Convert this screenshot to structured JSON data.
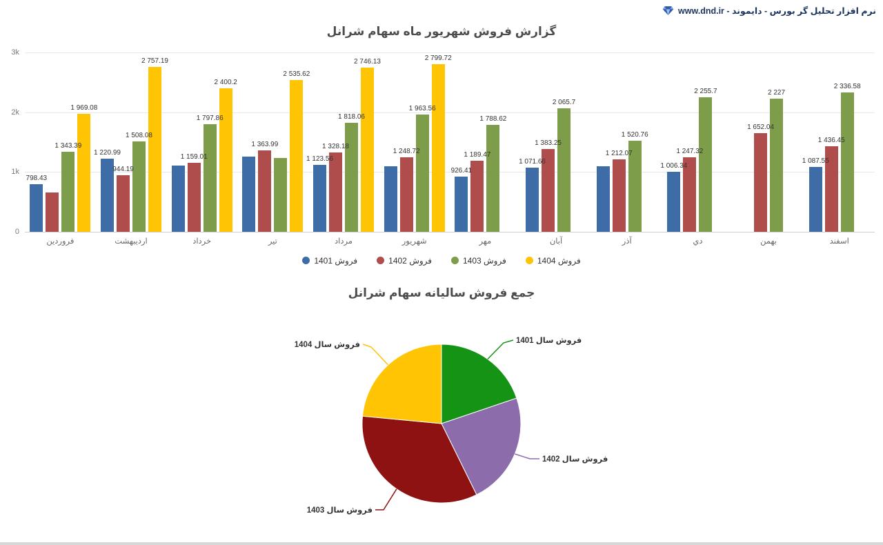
{
  "header": {
    "title": "نرم افزار تحلیل گر بورس - دایموند - www.dnd.ir"
  },
  "chart_data": [
    {
      "type": "bar",
      "title": "گزارش فروش شهریور ماه سهام شرانل",
      "categories": [
        "فروردین",
        "اردیبهشت",
        "خرداد",
        "تیر",
        "مرداد",
        "شهریور",
        "مهر",
        "آبان",
        "آذر",
        "دي",
        "بهمن",
        "اسفند"
      ],
      "ylim": [
        0,
        3000
      ],
      "yticks": [
        "0",
        "1k",
        "2k",
        "3k"
      ],
      "grid": true,
      "legend_position": "bottom",
      "series": [
        {
          "name": "فروش 1401",
          "color": "#3e6ca6",
          "values": [
            798.43,
            1220.99,
            1105,
            1260,
            1123.56,
            1095,
            926.41,
            1071.66,
            1095,
            1006.34,
            null,
            1087.55
          ],
          "labels": [
            "798.43",
            "1 220.99",
            null,
            null,
            "1 123.56",
            null,
            "926.41",
            "1 071.66",
            null,
            "1 006.34",
            null,
            "1 087.55"
          ]
        },
        {
          "name": "فروش 1402",
          "color": "#af4c4c",
          "values": [
            660,
            944.19,
            1159.01,
            1363.99,
            1328.18,
            1248.72,
            1189.47,
            1383.25,
            1212.07,
            1247.32,
            1652.04,
            1436.45
          ],
          "labels": [
            null,
            "944.19",
            "1 159.01",
            "1 363.99",
            "1 328.18",
            "1 248.72",
            "1 189.47",
            "1 383.25",
            "1 212.07",
            "1 247.32",
            "1 652.04",
            "1 436.45"
          ]
        },
        {
          "name": "فروش 1403",
          "color": "#7e9d4b",
          "values": [
            1343.39,
            1508.08,
            1797.86,
            1235,
            1818.06,
            1963.56,
            1788.62,
            2065.7,
            1520.76,
            2255.7,
            2227,
            2336.58
          ],
          "labels": [
            "1 343.39",
            "1 508.08",
            "1 797.86",
            null,
            "1 818.06",
            "1 963.56",
            "1 788.62",
            "2 065.7",
            "1 520.76",
            "2 255.7",
            "2 227",
            "2 336.58"
          ]
        },
        {
          "name": "فروش 1404",
          "color": "#ffc403",
          "values": [
            1969.08,
            2757.19,
            2400.2,
            2535.62,
            2746.13,
            2799.72,
            null,
            null,
            null,
            null,
            null,
            null
          ],
          "labels": [
            "1 969.08",
            "2 757.19",
            "2 400.2",
            "2 535.62",
            "2 746.13",
            "2 799.72",
            null,
            null,
            null,
            null,
            null,
            null
          ]
        }
      ]
    },
    {
      "type": "pie",
      "title": "جمع فروش سالیانه سهام شرانل",
      "slices": [
        {
          "label": "فروش سال 1401",
          "color": "#159315",
          "percent": 19.8
        },
        {
          "label": "فروش سال 1402",
          "color": "#8d6cab",
          "percent": 22.9
        },
        {
          "label": "فروش سال 1403",
          "color": "#8e1212",
          "percent": 33.8
        },
        {
          "label": "فروش سال 1404",
          "color": "#ffc403",
          "percent": 23.5
        }
      ]
    }
  ]
}
